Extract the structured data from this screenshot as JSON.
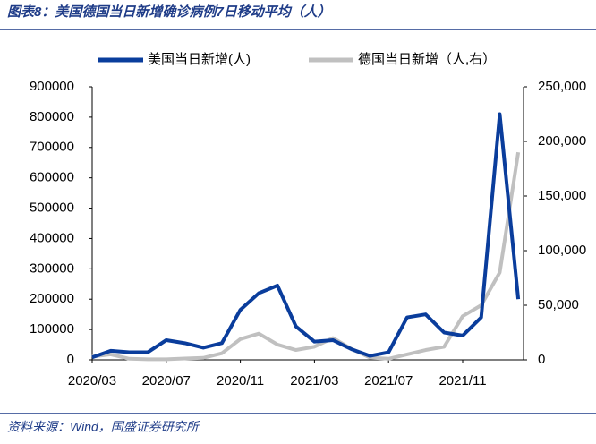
{
  "chart_data": {
    "type": "line",
    "title": "图表8：美国德国当日新增确诊病例7日移动平均（人）",
    "source": "资料来源：Wind，国盛证券研究所",
    "categories": [
      "2020/03",
      null,
      null,
      null,
      "2020/07",
      null,
      null,
      null,
      "2020/11",
      null,
      null,
      null,
      "2021/03",
      null,
      null,
      null,
      "2021/07",
      null,
      null,
      null,
      "2021/11",
      null,
      null,
      null
    ],
    "series": [
      {
        "name": "美国当日新增(人)",
        "color": "#0a3d9c",
        "values": [
          8000,
          30000,
          25000,
          25000,
          65000,
          55000,
          40000,
          55000,
          165000,
          220000,
          245000,
          110000,
          60000,
          65000,
          35000,
          13000,
          25000,
          140000,
          150000,
          90000,
          80000,
          140000,
          810000,
          200000
        ]
      },
      {
        "name": "德国当日新增（人,右）",
        "color": "#c0c0c0",
        "axis": "y2",
        "values": [
          3000,
          5000,
          1000,
          500,
          500,
          1200,
          1800,
          6000,
          19000,
          24000,
          14000,
          9000,
          12000,
          20000,
          10000,
          2000,
          1000,
          5000,
          9000,
          12000,
          40000,
          50000,
          80000,
          190000
        ]
      }
    ],
    "ylim": [
      0,
      900000
    ],
    "yticks": [
      0,
      100000,
      200000,
      300000,
      400000,
      500000,
      600000,
      700000,
      800000,
      900000
    ],
    "y2lim": [
      0,
      250000
    ],
    "y2ticks": [
      0,
      {
        "value": 50000,
        "label": "50,000"
      },
      {
        "value": 100000,
        "label": "100,000"
      },
      {
        "value": 150000,
        "label": "150,000"
      },
      {
        "value": 200000,
        "label": "200,000"
      },
      {
        "value": 250000,
        "label": "250,000"
      }
    ]
  }
}
